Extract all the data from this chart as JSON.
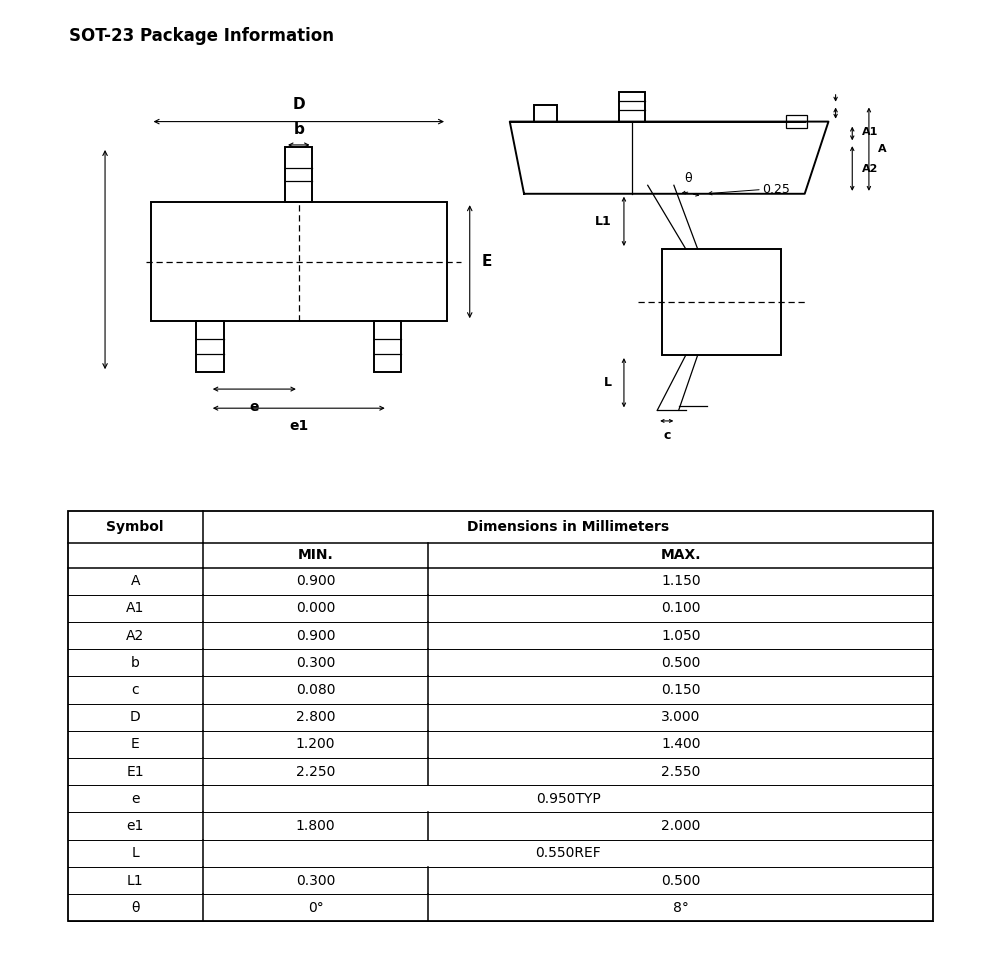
{
  "title": "SOT-23 Package Information",
  "table_data": [
    [
      "A",
      "0.900",
      "1.150"
    ],
    [
      "A1",
      "0.000",
      "0.100"
    ],
    [
      "A2",
      "0.900",
      "1.050"
    ],
    [
      "b",
      "0.300",
      "0.500"
    ],
    [
      "c",
      "0.080",
      "0.150"
    ],
    [
      "D",
      "2.800",
      "3.000"
    ],
    [
      "E",
      "1.200",
      "1.400"
    ],
    [
      "E1",
      "2.250",
      "2.550"
    ],
    [
      "e",
      "",
      "0.950TYP"
    ],
    [
      "e1",
      "1.800",
      "2.000"
    ],
    [
      "L",
      "",
      "0.550REF"
    ],
    [
      "L1",
      "0.300",
      "0.500"
    ],
    [
      "θ",
      "0°",
      "8°"
    ]
  ],
  "bg_color": "#ffffff",
  "line_color": "#000000"
}
